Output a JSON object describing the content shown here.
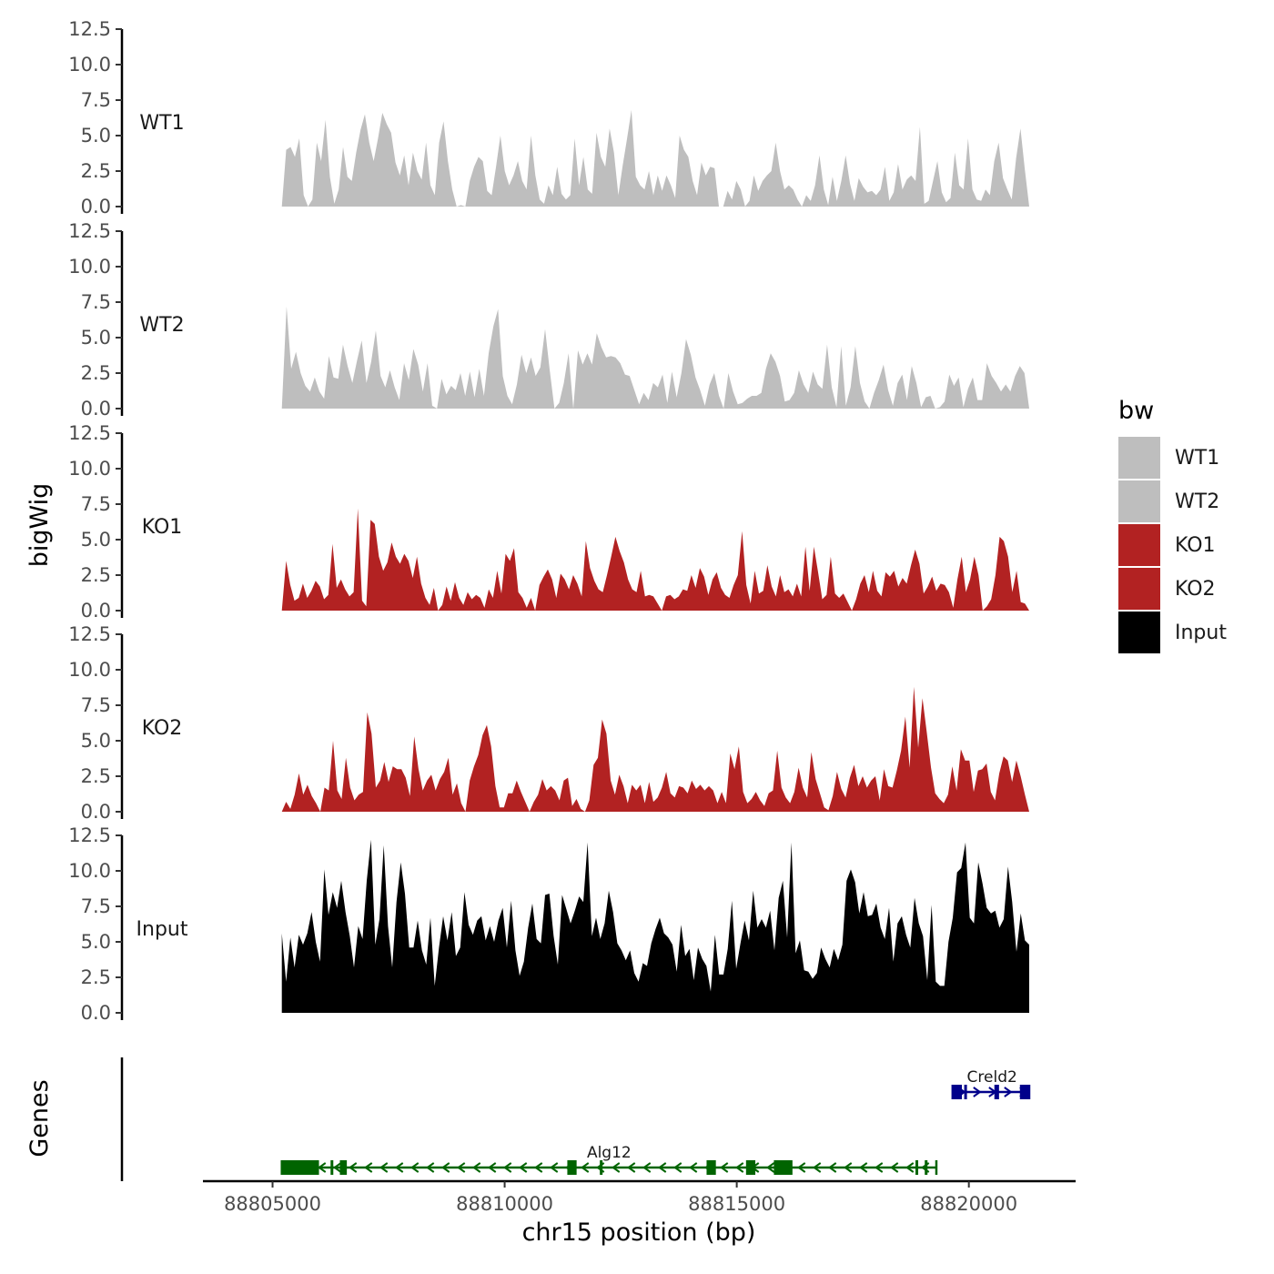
{
  "chart_data": {
    "type": "area",
    "title": "",
    "xlabel": "chr15 position (bp)",
    "ylabel": "bigWig",
    "genes_label": "Genes",
    "xlim": [
      88803500,
      88822300
    ],
    "ylim": [
      0,
      12.5
    ],
    "x_ticks": [
      88805000,
      88810000,
      88815000,
      88820000
    ],
    "x_tick_labels": [
      "88805000",
      "88810000",
      "88815000",
      "88820000"
    ],
    "y_ticks": [
      0,
      2.5,
      5,
      7.5,
      10,
      12.5
    ],
    "y_tick_labels": [
      "0.0",
      "2.5",
      "5.0",
      "7.5",
      "10.0",
      "12.5"
    ],
    "x_start": 88805200,
    "x_end": 88821300,
    "legend": {
      "title": "bw",
      "position": "right",
      "entries": [
        {
          "label": "WT1",
          "color": "#bebebe"
        },
        {
          "label": "WT2",
          "color": "#bebebe"
        },
        {
          "label": "KO1",
          "color": "#b22222"
        },
        {
          "label": "KO2",
          "color": "#b22222"
        },
        {
          "label": "Input",
          "color": "#000000"
        }
      ]
    },
    "series": [
      {
        "name": "WT1",
        "color": "#bebebe",
        "values": [
          0,
          4,
          4.2,
          3.5,
          4.8,
          0.8,
          0,
          0.5,
          4.5,
          3.2,
          6.1,
          2.1,
          0.2,
          1.2,
          4.2,
          2.1,
          1.8,
          3.8,
          5.4,
          6.5,
          4.5,
          3.2,
          4.8,
          6.6,
          5.8,
          5.2,
          3.1,
          2.2,
          3.6,
          1.5,
          3.8,
          2.5,
          1.9,
          4.5,
          1.5,
          0.8,
          4.5,
          6,
          3.2,
          1.2,
          0,
          0.1,
          0,
          1.8,
          2.8,
          3.5,
          3.2,
          1.1,
          0.8,
          2.8,
          5,
          2.5,
          1.5,
          2.2,
          3.2,
          1.8,
          1.2,
          5,
          2.2,
          0.5,
          0.2,
          1.5,
          0.8,
          2.8,
          0.9,
          0.5,
          0.8,
          4.8,
          1.5,
          3.5,
          1.2,
          0.9,
          5.2,
          3.5,
          2.8,
          5.5,
          3.8,
          0.8,
          2.9,
          4.8,
          6.8,
          2.1,
          1.5,
          1.2,
          2.5,
          0.8,
          2.2,
          1.1,
          2.2,
          1.5,
          0.6,
          5,
          4,
          3.5,
          1.8,
          0.8,
          3.1,
          2.2,
          2.8,
          2.7,
          0,
          0,
          1.1,
          0.5,
          1.8,
          1.2,
          0,
          0.4,
          2.2,
          1.1,
          1.8,
          2.2,
          2.5,
          4.5,
          2.5,
          1.2,
          1.5,
          1.2,
          0.5,
          0,
          0.8,
          0.4,
          1.5,
          3.6,
          1.2,
          0.1,
          2.1,
          0.4,
          1.8,
          3.6,
          1.6,
          0.4,
          2,
          1.4,
          1,
          1.1,
          0.8,
          1.2,
          2.8,
          0.4,
          1,
          3,
          1.2,
          1.9,
          2.2,
          1.8,
          5.6,
          0.2,
          0.4,
          1.8,
          3.2,
          1,
          0.3,
          0.6,
          3.8,
          1.5,
          1.2,
          4.8,
          1.2,
          0.5,
          0.4,
          1.2,
          0.8,
          3.2,
          4.5,
          2,
          1.2,
          0.5,
          3.4,
          5.5,
          2.6,
          0
        ]
      },
      {
        "name": "WT2",
        "color": "#bebebe",
        "values": [
          0,
          7.2,
          2.8,
          4,
          2.5,
          1.6,
          1.2,
          2.2,
          1.2,
          0.7,
          3.7,
          2.2,
          2.1,
          4.5,
          3,
          1.8,
          3.4,
          4.8,
          1.8,
          3.3,
          5.5,
          2.3,
          1.5,
          2.7,
          1.5,
          0.6,
          3.2,
          2,
          4.2,
          3.1,
          1.2,
          3.2,
          0.2,
          0,
          2.1,
          1,
          1.6,
          1.3,
          2.5,
          0.9,
          2.6,
          0.8,
          2.8,
          0.9,
          3.9,
          5.8,
          7,
          2.3,
          0.9,
          0.3,
          1.7,
          3.8,
          2.5,
          3.6,
          2.3,
          2.9,
          5.6,
          2.7,
          0,
          0.4,
          1.8,
          3.9,
          0,
          4.1,
          3.1,
          3.9,
          3.1,
          5.3,
          4.3,
          3.6,
          3.7,
          3.6,
          3.2,
          2.4,
          2.3,
          1.3,
          0.3,
          1.1,
          0.6,
          1.8,
          1.5,
          2.4,
          0.4,
          2.6,
          0.8,
          2.5,
          4.9,
          3.8,
          2.2,
          1.3,
          0.2,
          1.7,
          2.5,
          0.9,
          0,
          2.5,
          1.2,
          0.3,
          0.4,
          0.7,
          0.9,
          0.9,
          1.1,
          2.8,
          3.9,
          3.3,
          2.3,
          0.5,
          0.6,
          1.1,
          2.7,
          1.7,
          1.1,
          2.6,
          1.7,
          1.4,
          4.5,
          1.5,
          0.1,
          4.4,
          0.2,
          1.5,
          4.4,
          1.8,
          0.5,
          0,
          1.1,
          2,
          3.1,
          1.3,
          0.2,
          1.8,
          2.4,
          0.6,
          3,
          1.8,
          0.1,
          0.8,
          0.9,
          0,
          0.1,
          0.5,
          2.4,
          1.6,
          2.2,
          0.1,
          1.4,
          2.2,
          0.6,
          0.6,
          3.2,
          2.3,
          1.8,
          1.2,
          1.7,
          1.2,
          2.3,
          3,
          2.5,
          0
        ]
      },
      {
        "name": "KO1",
        "color": "#b22222",
        "values": [
          0,
          3.5,
          1.8,
          0.7,
          0.9,
          1.9,
          0.9,
          1.4,
          2.1,
          1.7,
          0.8,
          1.1,
          4.7,
          1.6,
          2.2,
          1.5,
          1,
          1.3,
          7.2,
          0.7,
          0.3,
          6.4,
          6.1,
          3.8,
          2.8,
          3.4,
          4.8,
          3.8,
          3.3,
          4,
          3.5,
          2.3,
          3.8,
          1.9,
          0.9,
          0.4,
          1.6,
          0,
          0.4,
          1.7,
          0.7,
          2,
          0.9,
          0.4,
          1.3,
          0.8,
          1.1,
          0.9,
          0.2,
          1.5,
          0.9,
          2.8,
          1.2,
          4,
          3.5,
          4.4,
          1.3,
          0.9,
          0.2,
          0.9,
          0,
          1.8,
          2.4,
          2.9,
          2.2,
          0.9,
          2.6,
          2.2,
          1.5,
          2.5,
          1.9,
          1,
          4.9,
          3,
          2.1,
          1.5,
          1.3,
          2.5,
          3.8,
          5.2,
          4.2,
          3.4,
          2.2,
          1.5,
          1.3,
          2.8,
          1,
          1.1,
          1,
          0.5,
          0,
          1,
          1.1,
          0.8,
          1,
          1.5,
          1.4,
          2.5,
          1.6,
          3,
          2.4,
          1.1,
          2.2,
          2.7,
          1.6,
          1.1,
          0.9,
          1.8,
          2.5,
          5.6,
          1.8,
          0.5,
          2.8,
          1.2,
          1.4,
          3.2,
          1.7,
          1,
          2.5,
          1.3,
          1.5,
          1,
          1.9,
          1,
          4.5,
          1.4,
          4.5,
          2.7,
          0.8,
          1.1,
          3.8,
          1.2,
          0.9,
          1.2,
          0.6,
          0,
          0.8,
          1.9,
          2.5,
          1.3,
          2.8,
          1.4,
          1,
          2.7,
          2.4,
          2.8,
          1.7,
          2.3,
          1.9,
          3.2,
          4.3,
          3.3,
          1.2,
          1.7,
          2.4,
          1.4,
          1.9,
          1.8,
          1.3,
          0.2,
          2.2,
          3.8,
          1.3,
          2.2,
          3.8,
          2.5,
          0,
          0.3,
          0.8,
          2.5,
          5.2,
          4.9,
          3.8,
          1.3,
          2.8,
          0.6,
          0.5,
          0
        ]
      },
      {
        "name": "KO2",
        "color": "#b22222",
        "values": [
          0,
          0.7,
          0.2,
          1.2,
          2.7,
          1.2,
          1.9,
          1.1,
          0.6,
          0,
          1.7,
          1.5,
          5,
          1.5,
          0.9,
          3.8,
          1.7,
          0.8,
          1.2,
          1.4,
          7,
          5.5,
          1.7,
          2.2,
          3.5,
          2.1,
          3.2,
          3,
          3,
          2.4,
          1.1,
          5.3,
          3,
          1.5,
          2.2,
          2.6,
          1.5,
          2.3,
          2.8,
          3.8,
          1.2,
          2,
          0.6,
          0,
          2.2,
          3.2,
          4,
          5.4,
          6.1,
          4.6,
          1.8,
          0.3,
          0.3,
          1.3,
          1.3,
          2.2,
          1.4,
          0.7,
          0,
          0.7,
          1.2,
          2.3,
          1.5,
          1.8,
          1.5,
          0.8,
          2.2,
          2.4,
          0.4,
          0.9,
          0.2,
          0,
          0.8,
          3.3,
          3.8,
          6.5,
          5.5,
          2.2,
          1.2,
          2.6,
          1.8,
          0.6,
          1.9,
          1.5,
          1.9,
          0.6,
          2.1,
          0.7,
          1,
          1.7,
          2.8,
          1.3,
          1,
          1.8,
          1.7,
          1.3,
          2.2,
          1.6,
          1.9,
          1.5,
          1.8,
          1.5,
          0.6,
          1.4,
          0.6,
          4.1,
          3,
          4.6,
          1.4,
          0.6,
          0.9,
          1.4,
          0.8,
          0.4,
          1.3,
          1.5,
          4.3,
          1.7,
          1,
          0.6,
          1.4,
          3.1,
          1.7,
          1,
          4.2,
          2.3,
          1.3,
          0.3,
          0.1,
          1.1,
          2.8,
          1.6,
          1,
          2.4,
          3.3,
          1.8,
          2.5,
          1.7,
          2.2,
          2.5,
          0.8,
          3,
          1.8,
          1.7,
          2.9,
          4.3,
          6.7,
          3.1,
          8.8,
          4.5,
          8,
          5.6,
          3.1,
          1.3,
          0.9,
          0.6,
          1.2,
          3.2,
          1.5,
          4.4,
          3.6,
          3.6,
          1.4,
          2.9,
          3,
          3.4,
          1.4,
          0.8,
          2.7,
          3.9,
          3.6,
          2.1,
          3.6,
          2.5,
          1.2,
          0
        ]
      },
      {
        "name": "Input",
        "color": "#000000",
        "values": [
          5.6,
          2.2,
          5.3,
          3.2,
          5.5,
          4.8,
          5.6,
          7.1,
          5,
          3.6,
          10.1,
          6.9,
          8.5,
          7.4,
          9.3,
          7.1,
          5.4,
          3.2,
          6.1,
          5.2,
          9.3,
          12.2,
          4.8,
          6.6,
          11.8,
          6.1,
          3.2,
          7.8,
          10.6,
          8.4,
          4.6,
          4.6,
          6.5,
          4.4,
          3.4,
          6.7,
          1.9,
          4.6,
          6.8,
          5.1,
          7.1,
          4,
          4.6,
          8.5,
          6.2,
          5.5,
          6.5,
          6.8,
          5.1,
          6.1,
          5,
          6.5,
          7.4,
          4.6,
          7.9,
          4.4,
          2.6,
          3.6,
          6,
          7.7,
          5.2,
          4.9,
          8.3,
          8.4,
          5.4,
          3.4,
          8.3,
          7.3,
          6.3,
          7.2,
          8.2,
          7.8,
          12,
          5.4,
          6.7,
          5.2,
          6.3,
          8.6,
          7.1,
          4.9,
          4.4,
          3.7,
          4.4,
          2.8,
          2.2,
          3.5,
          3.3,
          4.9,
          5.9,
          6.7,
          5.6,
          5.3,
          4.8,
          2.9,
          6.2,
          4,
          4.5,
          2.3,
          4.6,
          3.8,
          3.3,
          1.5,
          5.5,
          2.7,
          2.7,
          4.5,
          7.9,
          3.1,
          4.9,
          6.5,
          5.1,
          8.6,
          6,
          6.6,
          6,
          7.2,
          4.4,
          8.1,
          9.3,
          5.3,
          12,
          4.2,
          5.1,
          3,
          2.9,
          2.4,
          2.8,
          4.6,
          3.8,
          3.2,
          4.5,
          3.7,
          4.8,
          9.3,
          10.1,
          9.2,
          7,
          8.5,
          6.8,
          6.9,
          7.7,
          6,
          5.2,
          7.4,
          3.6,
          6.3,
          6.8,
          5.5,
          4.6,
          8.1,
          6.3,
          5.4,
          2.3,
          7.6,
          2.2,
          1.9,
          1.9,
          5,
          6.7,
          9.9,
          10.2,
          12,
          6.7,
          6.3,
          10.6,
          9.1,
          7.4,
          7,
          7.2,
          6,
          6.6,
          10.3,
          7.8,
          4.3,
          7,
          5.1,
          4.8
        ]
      }
    ],
    "genes": [
      {
        "name": "Creld2",
        "start": 88819650,
        "end": 88821300,
        "strand": "+",
        "color": "#00008b",
        "exons": [
          [
            88819650,
            88819850
          ],
          [
            88819900,
            88819950
          ],
          [
            88820550,
            88820650
          ],
          [
            88821100,
            88821300
          ]
        ]
      },
      {
        "name": "Alg12",
        "start": 88805200,
        "end": 88819300,
        "strand": "-",
        "color": "#006400",
        "exons": [
          [
            88805200,
            88806000
          ],
          [
            88806250,
            88806300
          ],
          [
            88806450,
            88806600
          ],
          [
            88811350,
            88811550
          ],
          [
            88812050,
            88812100
          ],
          [
            88814350,
            88814550
          ],
          [
            88815200,
            88815400
          ],
          [
            88815800,
            88816200
          ],
          [
            88818850,
            88818900
          ],
          [
            88819050,
            88819100
          ]
        ]
      }
    ]
  }
}
